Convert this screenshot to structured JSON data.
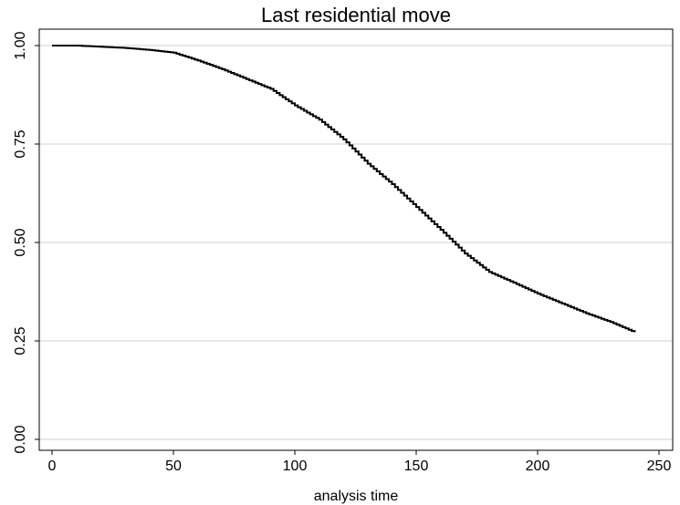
{
  "chart_data": {
    "type": "line",
    "title": "Last residential move",
    "xlabel": "analysis time",
    "ylabel": "",
    "xlim": [
      0,
      250
    ],
    "ylim": [
      0,
      1
    ],
    "x_ticks": [
      0,
      50,
      100,
      150,
      200,
      250
    ],
    "x_tick_labels": [
      "0",
      "50",
      "100",
      "150",
      "200",
      "250"
    ],
    "y_ticks": [
      0,
      0.25,
      0.5,
      0.75,
      1.0
    ],
    "y_tick_labels": [
      "0.00",
      "0.25",
      "0.50",
      "0.75",
      "1.00"
    ],
    "grid": "horizontal",
    "legend": "none",
    "line_style": "step",
    "colors": {
      "line": "#000000",
      "grid": "#d9d9d9",
      "frame": "#000000",
      "background": "#ffffff"
    },
    "series": [
      {
        "x": [
          0,
          10,
          20,
          30,
          40,
          50,
          60,
          70,
          80,
          90,
          100,
          110,
          120,
          130,
          140,
          150,
          160,
          170,
          180,
          190,
          200,
          210,
          220,
          230,
          240
        ],
        "values": [
          1.0,
          1.0,
          0.997,
          0.994,
          0.989,
          0.982,
          0.962,
          0.94,
          0.915,
          0.89,
          0.848,
          0.812,
          0.762,
          0.7,
          0.648,
          0.59,
          0.532,
          0.472,
          0.425,
          0.398,
          0.37,
          0.345,
          0.32,
          0.298,
          0.272
        ]
      }
    ]
  }
}
